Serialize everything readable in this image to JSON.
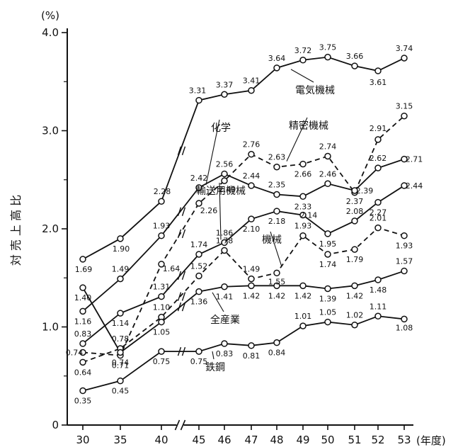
{
  "chart_data": {
    "type": "line",
    "title": "",
    "ylabel": "対 売 上 高 比",
    "y_unit": "(%)",
    "x_unit": "(年度)",
    "categories": [
      "30",
      "35",
      "40",
      "45",
      "46",
      "47",
      "48",
      "49",
      "50",
      "51",
      "52",
      "53"
    ],
    "yticks": [
      "0",
      "1.0",
      "2.0",
      "3.0",
      "4.0"
    ],
    "ylim": [
      0,
      4.0
    ],
    "grid": false,
    "legend": "none",
    "axis_break_between": [
      "40",
      "45"
    ],
    "series": [
      {
        "name": "電気機械",
        "style": "solid",
        "values": [
          1.69,
          1.9,
          2.28,
          3.31,
          3.37,
          3.41,
          3.64,
          3.72,
          3.75,
          3.66,
          3.61,
          3.74
        ],
        "labels": [
          "1.69",
          "1.90",
          "2.28",
          "3.31",
          "3.37",
          "3.41",
          "3.64",
          "3.72",
          "3.75",
          "3.66",
          "3.61",
          "3.74"
        ]
      },
      {
        "name": "精密機械",
        "style": "dashed",
        "values": [
          0.74,
          0.71,
          1.64,
          2.26,
          2.49,
          2.76,
          2.63,
          2.66,
          2.74,
          2.37,
          2.91,
          3.15
        ],
        "labels": [
          "0.74",
          "0.71",
          "1.64",
          "2.26",
          "2.49",
          "2.76",
          "2.63",
          "2.66",
          "2.74",
          "2.37",
          "2.91",
          "3.15"
        ]
      },
      {
        "name": "化学",
        "style": "solid",
        "values": [
          1.16,
          1.49,
          1.93,
          2.42,
          2.56,
          2.44,
          2.35,
          2.33,
          2.46,
          2.39,
          2.62,
          2.71
        ],
        "labels": [
          "1.16",
          "1.49",
          "1.93",
          "2.42",
          "2.56",
          "2.44",
          "2.35",
          "2.33",
          "2.46",
          "2.39",
          "2.62",
          "2.71"
        ]
      },
      {
        "name": "輸送用機械",
        "style": "solid",
        "values": [
          0.83,
          1.14,
          1.31,
          1.74,
          1.86,
          2.1,
          2.18,
          2.14,
          1.95,
          2.08,
          2.27,
          2.44
        ],
        "labels": [
          "0.83",
          "1.14",
          "1.31",
          "1.74",
          "1.86",
          "2.10",
          "2.18",
          "2.14",
          "1.95",
          "2.08",
          "2.27",
          "2.44"
        ]
      },
      {
        "name": "機械",
        "style": "dashed",
        "values": [
          0.64,
          0.78,
          1.1,
          1.52,
          1.78,
          1.49,
          1.55,
          1.93,
          1.74,
          1.79,
          2.01,
          1.93
        ],
        "labels": [
          "0.64",
          "0.78",
          "1.10",
          "1.52",
          "1.78",
          "1.49",
          "1.55",
          "1.93",
          "1.74",
          "1.79",
          "2.01",
          "1.93"
        ]
      },
      {
        "name": "全産業",
        "style": "solid",
        "values": [
          1.4,
          0.74,
          1.05,
          1.36,
          1.41,
          1.42,
          1.42,
          1.42,
          1.39,
          1.42,
          1.48,
          1.57
        ],
        "labels": [
          "1.40",
          "0.74",
          "1.05",
          "1.36",
          "1.41",
          "1.42",
          "1.42",
          "1.42",
          "1.39",
          "1.42",
          "1.48",
          "1.57"
        ]
      },
      {
        "name": "鉄鋼",
        "style": "solid",
        "values": [
          0.35,
          0.45,
          0.75,
          0.75,
          0.83,
          0.81,
          0.84,
          1.01,
          1.05,
          1.02,
          1.11,
          1.08
        ],
        "labels": [
          "0.35",
          "0.45",
          "0.75",
          "0.75",
          "0.83",
          "0.81",
          "0.84",
          "1.01",
          "1.05",
          "1.02",
          "1.11",
          "1.08"
        ]
      }
    ]
  }
}
